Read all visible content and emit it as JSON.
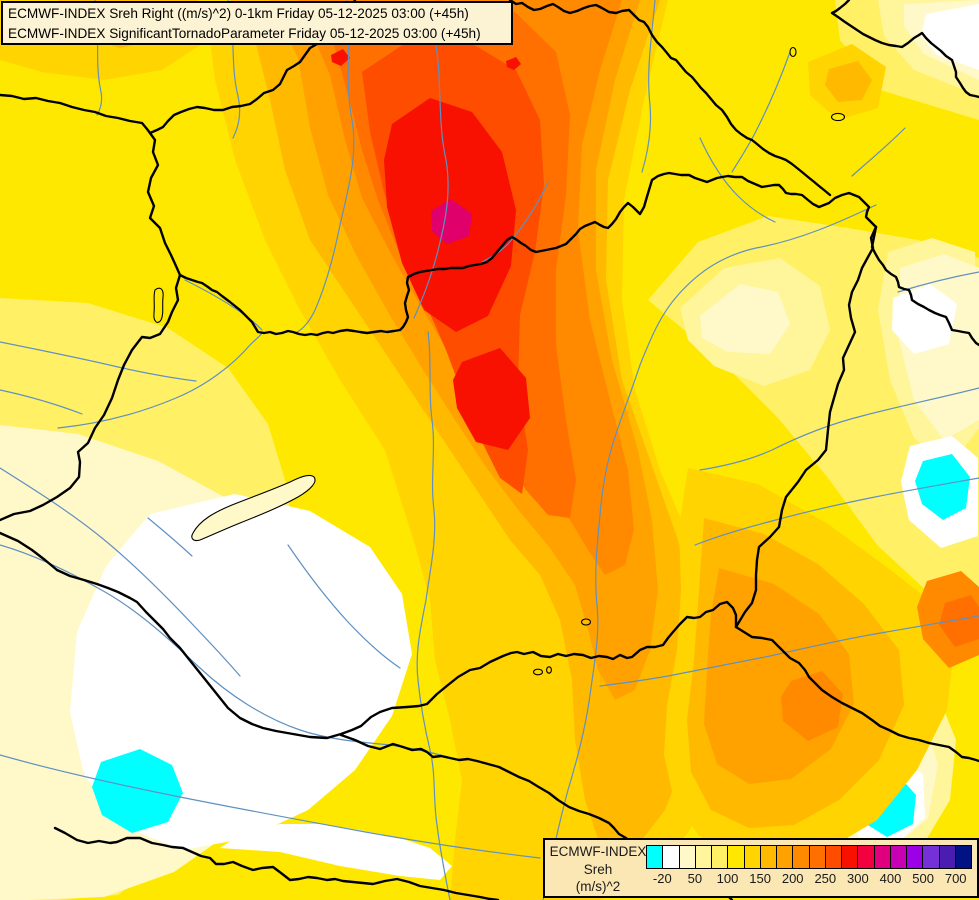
{
  "header": {
    "line1": "ECMWF-INDEX Sreh Right ((m/s)^2) 0-1km Friday 05-12-2025 03:00 (+45h)",
    "line2": "ECMWF-INDEX SignificantTornadoParameter Friday 05-12-2025 03:00 (+45h)"
  },
  "legend": {
    "title_line1": "ECMWF-INDEX",
    "title_line2": "Sreh",
    "title_line3": "(m/s)^2",
    "ticks": [
      "-20",
      "50",
      "100",
      "150",
      "200",
      "250",
      "300",
      "400",
      "500",
      "700"
    ],
    "colors": [
      "#00FFFF",
      "#FFFFFF",
      "#FFF9C9",
      "#FFF59B",
      "#FFF066",
      "#FFE800",
      "#FFD400",
      "#FFBA00",
      "#FFA200",
      "#FF8A00",
      "#FF7000",
      "#FF4D00",
      "#F81000",
      "#F2003F",
      "#E0007D",
      "#C800B4",
      "#9C00E6",
      "#7530D8",
      "#4A1CB0",
      "#001284"
    ]
  },
  "map": {
    "field_min_color": "#00FFFF",
    "field_max_color": "#001284",
    "hotspot_core_color": "#E0006B",
    "border_color": "#000000",
    "river_color": "#6090C0",
    "background_color": "#FFE800"
  }
}
